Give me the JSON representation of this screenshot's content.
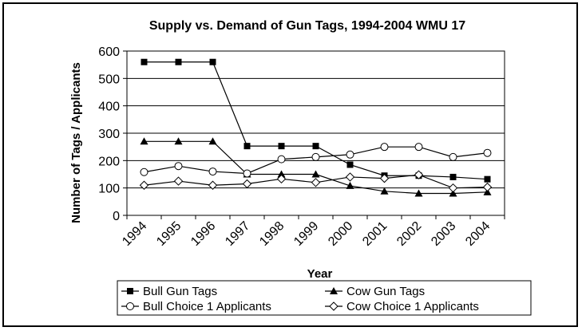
{
  "chart_data": {
    "type": "line",
    "title": "Supply vs. Demand of Gun Tags, 1994-2004 WMU 17",
    "xlabel": "Year",
    "ylabel": "Number of Tags / Applicants",
    "categories": [
      "1994",
      "1995",
      "1996",
      "1997",
      "1998",
      "1999",
      "2000",
      "2001",
      "2002",
      "2003",
      "2004"
    ],
    "ylim": [
      0,
      600
    ],
    "yticks": [
      0,
      100,
      200,
      300,
      400,
      500,
      600
    ],
    "grid": "horizontal",
    "legend_position": "bottom",
    "series": [
      {
        "name": "Bull Gun Tags",
        "marker": "square-filled",
        "values": [
          560,
          560,
          560,
          253,
          253,
          253,
          185,
          145,
          145,
          140,
          132
        ]
      },
      {
        "name": "Cow Gun Tags",
        "marker": "triangle-filled",
        "values": [
          270,
          270,
          270,
          150,
          150,
          150,
          108,
          88,
          80,
          80,
          85
        ]
      },
      {
        "name": "Bull Choice 1 Applicants",
        "marker": "circle-open",
        "values": [
          158,
          180,
          160,
          153,
          205,
          213,
          222,
          250,
          250,
          213,
          228
        ]
      },
      {
        "name": "Cow Choice 1 Applicants",
        "marker": "diamond-open",
        "values": [
          110,
          125,
          110,
          115,
          133,
          120,
          140,
          135,
          148,
          100,
          103
        ]
      }
    ]
  }
}
